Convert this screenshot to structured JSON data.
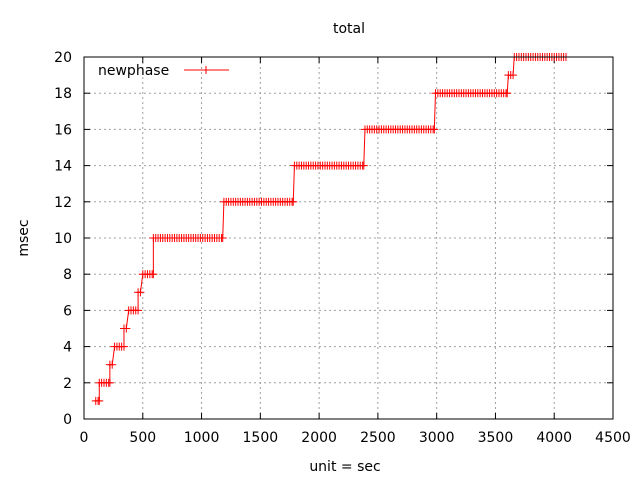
{
  "chart_data": {
    "type": "line",
    "title": "total",
    "xlabel": "unit = sec",
    "ylabel": "msec",
    "xlim": [
      0,
      4500
    ],
    "ylim": [
      0,
      20
    ],
    "xticks": [
      0,
      500,
      1000,
      1500,
      2000,
      2500,
      3000,
      3500,
      4000,
      4500
    ],
    "yticks": [
      0,
      2,
      4,
      6,
      8,
      10,
      12,
      14,
      16,
      18,
      20
    ],
    "grid": true,
    "legend_position": "top-left",
    "series": [
      {
        "name": "newphase",
        "color": "#ff0000",
        "marker": "plus",
        "step_starts": [
          100,
          130,
          220,
          260,
          340,
          380,
          460,
          500,
          590,
          1190,
          1790,
          2390,
          2990,
          3610,
          3660
        ],
        "step_ends": [
          130,
          220,
          240,
          340,
          360,
          460,
          480,
          590,
          1180,
          1780,
          2380,
          2980,
          3600,
          3650,
          4100
        ],
        "step_values": [
          1,
          2,
          3,
          4,
          5,
          6,
          7,
          8,
          10,
          12,
          14,
          16,
          18,
          19,
          20
        ],
        "sample_spacing": 20
      }
    ]
  }
}
